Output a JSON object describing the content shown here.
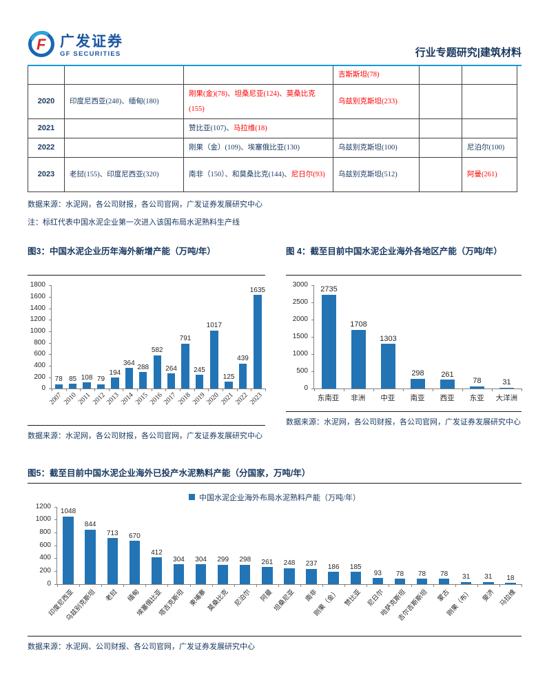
{
  "header": {
    "logo_cn": "广发证券",
    "logo_en": "GF SECURITIES",
    "right": "行业专题研究|建筑材料"
  },
  "colors": {
    "bar": "#2374B5",
    "navy": "#17375E",
    "red": "#FF0000",
    "rule_blue": "#1299DB"
  },
  "table": {
    "rows": [
      {
        "year": "",
        "cells": [
          [],
          [],
          [
            {
              "t": "吉斯斯坦(78)",
              "red": true
            }
          ],
          [],
          []
        ]
      },
      {
        "year": "2020",
        "cells": [
          [
            {
              "t": "印度尼西亚(248)、缅甸(180)",
              "red": false
            }
          ],
          [
            {
              "t": "刚果(金)(78)、坦桑尼亚(124)、莫桑比克(155)",
              "red": true
            }
          ],
          [
            {
              "t": "乌兹别克斯坦(233)",
              "red": true
            }
          ],
          [],
          []
        ]
      },
      {
        "year": "2021",
        "cells": [
          [],
          [
            {
              "t": "赞比亚(107)、",
              "red": false
            },
            {
              "t": "马拉维(18)",
              "red": true
            }
          ],
          [],
          [],
          []
        ]
      },
      {
        "year": "2022",
        "cells": [
          [],
          [
            {
              "t": "刚果（金）(109)、埃塞俄比亚(130)",
              "red": false
            }
          ],
          [
            {
              "t": "乌兹别克斯坦(100)",
              "red": false
            }
          ],
          [],
          [
            {
              "t": "尼泊尔(100)",
              "red": false
            }
          ]
        ]
      },
      {
        "year": "2023",
        "cells": [
          [
            {
              "t": "老挝(155)、印度尼西亚(320)",
              "red": false
            }
          ],
          [
            {
              "t": "南非（150）、和莫桑比克(144)、",
              "red": false
            },
            {
              "t": "尼日尔(93)",
              "red": true
            }
          ],
          [
            {
              "t": "乌兹别克斯坦(512)",
              "red": false
            }
          ],
          [],
          [
            {
              "t": "阿曼(261)",
              "red": true
            }
          ]
        ]
      }
    ]
  },
  "table_source": "数据来源：水泥网，各公司财报，各公司官网，广发证券发展研究中心",
  "table_note": "注：标红代表中国水泥企业第一次进入该国布局水泥熟料生产线",
  "figures": {
    "fig3": {
      "title": "图3：中国水泥企业历年海外新增产能（万吨/年）",
      "source": "数据来源：水泥网，各公司财报，各公司官网，广发证券发展研究中心"
    },
    "fig4": {
      "title": "图 4：截至目前中国水泥企业海外各地区产能（万吨/年）",
      "source": "数据来源：水泥网，各公司财报，各公司官网，广发证券发展研究中心"
    },
    "fig5": {
      "title": "图5：截至目前中国水泥企业海外已投产水泥熟料产能（分国家，万吨/年）",
      "legend": "中国水泥企业海外布局水泥熟料产能（万吨/年）",
      "source": "数据来源：水泥网、公司财报、各公司官网，广发证券发展研究中心"
    }
  },
  "chart_data": [
    {
      "type": "bar",
      "title": "中国水泥企业历年海外新增产能（万吨/年）",
      "categories": [
        "2007",
        "2010",
        "2011",
        "2012",
        "2013",
        "2014",
        "2015",
        "2016",
        "2017",
        "2018",
        "2019",
        "2020",
        "2021",
        "2022",
        "2023"
      ],
      "values": [
        78,
        85,
        108,
        79,
        194,
        364,
        288,
        582,
        264,
        791,
        245,
        1017,
        125,
        439,
        1635
      ],
      "ylim": [
        0,
        1800
      ],
      "ytick": 200,
      "grid": false,
      "legend_position": "none"
    },
    {
      "type": "bar",
      "title": "截至目前中国水泥企业海外各地区产能（万吨/年）",
      "categories": [
        "东南亚",
        "非洲",
        "中亚",
        "南亚",
        "西亚",
        "东亚",
        "大洋洲"
      ],
      "values": [
        2735,
        1708,
        1303,
        298,
        261,
        78,
        31
      ],
      "ylim": [
        0,
        3000
      ],
      "ytick": 500,
      "grid": false,
      "legend_position": "none"
    },
    {
      "type": "bar",
      "title": "截至目前中国水泥企业海外已投产水泥熟料产能（分国家，万吨/年）",
      "legend": [
        "中国水泥企业海外布局水泥熟料产能（万吨/年）"
      ],
      "legend_position": "top",
      "categories": [
        "印度尼西亚",
        "乌兹别克斯坦",
        "老挝",
        "缅甸",
        "埃塞俄比亚",
        "塔吉克斯坦",
        "柬埔寨",
        "莫桑比克",
        "尼泊尔",
        "阿曼",
        "坦桑尼亚",
        "南非",
        "刚果（金）",
        "赞比亚",
        "尼日尔",
        "哈萨克斯坦",
        "吉尔吉斯斯坦",
        "蒙古",
        "刚果（布）",
        "斐济",
        "马拉维"
      ],
      "values": [
        1048,
        844,
        713,
        670,
        412,
        304,
        304,
        299,
        298,
        261,
        248,
        237,
        186,
        185,
        93,
        78,
        78,
        78,
        31,
        31,
        18
      ],
      "ylim": [
        0,
        1200
      ],
      "ytick": 200,
      "grid": false
    }
  ]
}
